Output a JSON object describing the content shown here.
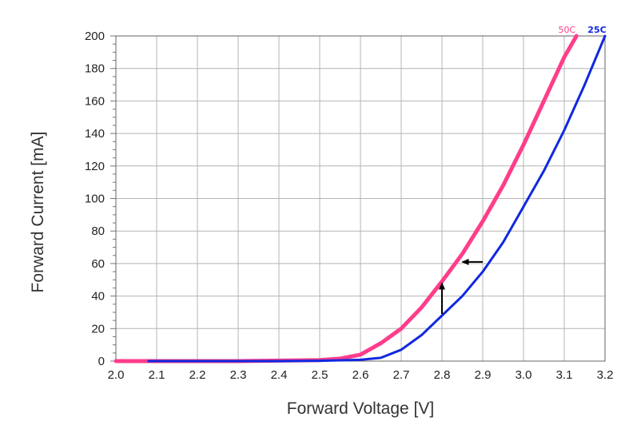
{
  "chart_data": {
    "type": "line",
    "xlabel": "Forward Voltage [V]",
    "ylabel": "Forward Current [mA]",
    "xlim": [
      2.0,
      3.2
    ],
    "ylim": [
      0,
      200
    ],
    "xticks": [
      "2.0",
      "2.1",
      "2.2",
      "2.3",
      "2.4",
      "2.5",
      "2.6",
      "2.7",
      "2.8",
      "2.9",
      "3.0",
      "3.1",
      "3.2"
    ],
    "yticks": [
      "0",
      "20",
      "40",
      "60",
      "80",
      "100",
      "120",
      "140",
      "160",
      "180",
      "200"
    ],
    "grid": true,
    "legend": "series labels at top-right ends of curves",
    "series": [
      {
        "name": "50C",
        "color": "#ff3d8b",
        "x": [
          2.0,
          2.1,
          2.2,
          2.3,
          2.4,
          2.5,
          2.55,
          2.6,
          2.65,
          2.7,
          2.75,
          2.8,
          2.85,
          2.9,
          2.95,
          3.0,
          3.05,
          3.1,
          3.13
        ],
        "y": [
          0,
          0,
          0,
          0,
          0.3,
          0.6,
          1.5,
          4,
          11,
          20,
          33,
          49,
          66,
          86,
          108,
          133,
          160,
          187,
          200
        ]
      },
      {
        "name": "25C",
        "color": "#1028e0",
        "x": [
          2.08,
          2.2,
          2.3,
          2.4,
          2.5,
          2.6,
          2.65,
          2.7,
          2.75,
          2.8,
          2.85,
          2.9,
          2.95,
          3.0,
          3.05,
          3.1,
          3.15,
          3.2
        ],
        "y": [
          0,
          0,
          0,
          0,
          0.2,
          0.8,
          2,
          7,
          16,
          28,
          40,
          55,
          73,
          95,
          117,
          142,
          170,
          200
        ]
      }
    ],
    "annotations": [
      {
        "type": "arrow",
        "direction": "left",
        "from": [
          2.9,
          61
        ],
        "to": [
          2.85,
          61
        ]
      },
      {
        "type": "arrow",
        "direction": "up",
        "from": [
          2.8,
          29
        ],
        "to": [
          2.8,
          48
        ]
      }
    ]
  }
}
